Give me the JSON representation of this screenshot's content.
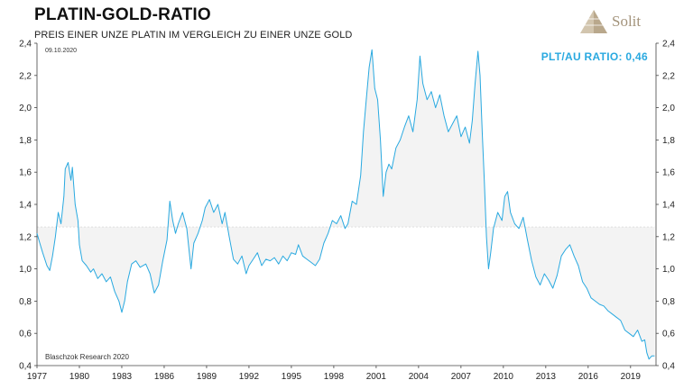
{
  "header": {
    "title": "PLATIN-GOLD-RATIO",
    "subtitle": "PREIS EINER UNZE PLATIN IM VERGLEICH ZU EINER UNZE GOLD"
  },
  "logo": {
    "text": "Solit",
    "color": "#a3937b"
  },
  "annotations": {
    "date": "09.10.2020",
    "current_ratio": "PLT/AU RATIO: 0,46",
    "source": "Blaschzok Research 2020"
  },
  "colors": {
    "line": "#29a9e0",
    "band_fill": "#f3f3f3",
    "band_stroke": "#cfcfcf"
  },
  "chart_data": {
    "type": "line",
    "title": "PLATIN-GOLD-RATIO",
    "subtitle": "PREIS EINER UNZE PLATIN IM VERGLEICH ZU EINER UNZE GOLD",
    "xlabel": "",
    "ylabel": "",
    "xlim": [
      1977,
      2020.8
    ],
    "ylim": [
      0.4,
      2.4
    ],
    "x_ticks": [
      1977,
      1980,
      1983,
      1986,
      1989,
      1992,
      1995,
      1998,
      2001,
      2004,
      2007,
      2010,
      2013,
      2016,
      2019
    ],
    "y_ticks": [
      0.4,
      0.6,
      0.8,
      1.0,
      1.2,
      1.4,
      1.6,
      1.8,
      2.0,
      2.2,
      2.4
    ],
    "y_tick_labels": [
      "0,4",
      "0,6",
      "0,8",
      "1,0",
      "1,2",
      "1,4",
      "1,6",
      "1,8",
      "2,0",
      "2,2",
      "2,4"
    ],
    "axes_both_sides": true,
    "grid": false,
    "reference_level": 1.26,
    "series": [
      {
        "color": "#29a9e0",
        "points": [
          [
            1977.0,
            1.22
          ],
          [
            1977.2,
            1.16
          ],
          [
            1977.4,
            1.1
          ],
          [
            1977.7,
            1.02
          ],
          [
            1977.9,
            0.99
          ],
          [
            1978.1,
            1.08
          ],
          [
            1978.3,
            1.2
          ],
          [
            1978.5,
            1.35
          ],
          [
            1978.7,
            1.28
          ],
          [
            1978.9,
            1.45
          ],
          [
            1979.0,
            1.62
          ],
          [
            1979.2,
            1.66
          ],
          [
            1979.4,
            1.55
          ],
          [
            1979.5,
            1.63
          ],
          [
            1979.7,
            1.4
          ],
          [
            1979.9,
            1.3
          ],
          [
            1980.0,
            1.15
          ],
          [
            1980.2,
            1.05
          ],
          [
            1980.5,
            1.02
          ],
          [
            1980.8,
            0.98
          ],
          [
            1981.0,
            1.0
          ],
          [
            1981.3,
            0.94
          ],
          [
            1981.6,
            0.97
          ],
          [
            1981.9,
            0.92
          ],
          [
            1982.2,
            0.95
          ],
          [
            1982.5,
            0.86
          ],
          [
            1982.8,
            0.8
          ],
          [
            1983.0,
            0.73
          ],
          [
            1983.2,
            0.8
          ],
          [
            1983.4,
            0.92
          ],
          [
            1983.7,
            1.03
          ],
          [
            1984.0,
            1.05
          ],
          [
            1984.3,
            1.01
          ],
          [
            1984.7,
            1.03
          ],
          [
            1985.0,
            0.97
          ],
          [
            1985.3,
            0.85
          ],
          [
            1985.6,
            0.9
          ],
          [
            1985.9,
            1.05
          ],
          [
            1986.2,
            1.18
          ],
          [
            1986.4,
            1.42
          ],
          [
            1986.6,
            1.3
          ],
          [
            1986.8,
            1.22
          ],
          [
            1987.0,
            1.28
          ],
          [
            1987.3,
            1.35
          ],
          [
            1987.6,
            1.25
          ],
          [
            1987.9,
            1.0
          ],
          [
            1988.1,
            1.16
          ],
          [
            1988.4,
            1.22
          ],
          [
            1988.7,
            1.3
          ],
          [
            1988.9,
            1.38
          ],
          [
            1989.2,
            1.43
          ],
          [
            1989.5,
            1.35
          ],
          [
            1989.8,
            1.4
          ],
          [
            1990.1,
            1.28
          ],
          [
            1990.3,
            1.35
          ],
          [
            1990.6,
            1.2
          ],
          [
            1990.9,
            1.06
          ],
          [
            1991.2,
            1.03
          ],
          [
            1991.5,
            1.08
          ],
          [
            1991.8,
            0.97
          ],
          [
            1992.0,
            1.02
          ],
          [
            1992.3,
            1.06
          ],
          [
            1992.6,
            1.1
          ],
          [
            1992.9,
            1.02
          ],
          [
            1993.2,
            1.06
          ],
          [
            1993.5,
            1.05
          ],
          [
            1993.8,
            1.07
          ],
          [
            1994.1,
            1.03
          ],
          [
            1994.4,
            1.08
          ],
          [
            1994.7,
            1.05
          ],
          [
            1995.0,
            1.1
          ],
          [
            1995.3,
            1.09
          ],
          [
            1995.5,
            1.15
          ],
          [
            1995.8,
            1.08
          ],
          [
            1996.1,
            1.06
          ],
          [
            1996.4,
            1.04
          ],
          [
            1996.7,
            1.02
          ],
          [
            1997.0,
            1.06
          ],
          [
            1997.3,
            1.16
          ],
          [
            1997.6,
            1.22
          ],
          [
            1997.9,
            1.3
          ],
          [
            1998.2,
            1.28
          ],
          [
            1998.5,
            1.33
          ],
          [
            1998.8,
            1.25
          ],
          [
            1999.0,
            1.28
          ],
          [
            1999.3,
            1.42
          ],
          [
            1999.6,
            1.4
          ],
          [
            1999.9,
            1.58
          ],
          [
            2000.1,
            1.85
          ],
          [
            2000.3,
            2.05
          ],
          [
            2000.5,
            2.25
          ],
          [
            2000.7,
            2.36
          ],
          [
            2000.9,
            2.12
          ],
          [
            2001.1,
            2.05
          ],
          [
            2001.3,
            1.8
          ],
          [
            2001.5,
            1.45
          ],
          [
            2001.7,
            1.6
          ],
          [
            2001.9,
            1.65
          ],
          [
            2002.1,
            1.62
          ],
          [
            2002.4,
            1.75
          ],
          [
            2002.7,
            1.8
          ],
          [
            2003.0,
            1.88
          ],
          [
            2003.3,
            1.95
          ],
          [
            2003.6,
            1.85
          ],
          [
            2003.9,
            2.05
          ],
          [
            2004.1,
            2.32
          ],
          [
            2004.3,
            2.15
          ],
          [
            2004.6,
            2.05
          ],
          [
            2004.9,
            2.1
          ],
          [
            2005.2,
            2.0
          ],
          [
            2005.5,
            2.08
          ],
          [
            2005.8,
            1.95
          ],
          [
            2006.1,
            1.85
          ],
          [
            2006.4,
            1.9
          ],
          [
            2006.7,
            1.95
          ],
          [
            2007.0,
            1.82
          ],
          [
            2007.3,
            1.88
          ],
          [
            2007.6,
            1.78
          ],
          [
            2007.8,
            1.92
          ],
          [
            2008.0,
            2.15
          ],
          [
            2008.2,
            2.35
          ],
          [
            2008.35,
            2.2
          ],
          [
            2008.5,
            1.85
          ],
          [
            2008.65,
            1.55
          ],
          [
            2008.8,
            1.2
          ],
          [
            2008.95,
            1.0
          ],
          [
            2009.1,
            1.1
          ],
          [
            2009.3,
            1.25
          ],
          [
            2009.6,
            1.35
          ],
          [
            2009.9,
            1.3
          ],
          [
            2010.1,
            1.45
          ],
          [
            2010.3,
            1.48
          ],
          [
            2010.5,
            1.35
          ],
          [
            2010.8,
            1.28
          ],
          [
            2011.1,
            1.25
          ],
          [
            2011.4,
            1.32
          ],
          [
            2011.7,
            1.18
          ],
          [
            2012.0,
            1.05
          ],
          [
            2012.3,
            0.95
          ],
          [
            2012.6,
            0.9
          ],
          [
            2012.9,
            0.97
          ],
          [
            2013.2,
            0.93
          ],
          [
            2013.5,
            0.88
          ],
          [
            2013.8,
            0.96
          ],
          [
            2014.1,
            1.08
          ],
          [
            2014.4,
            1.12
          ],
          [
            2014.7,
            1.15
          ],
          [
            2015.0,
            1.08
          ],
          [
            2015.3,
            1.02
          ],
          [
            2015.6,
            0.92
          ],
          [
            2015.9,
            0.88
          ],
          [
            2016.2,
            0.82
          ],
          [
            2016.5,
            0.8
          ],
          [
            2016.8,
            0.78
          ],
          [
            2017.1,
            0.77
          ],
          [
            2017.4,
            0.74
          ],
          [
            2017.7,
            0.72
          ],
          [
            2018.0,
            0.7
          ],
          [
            2018.3,
            0.68
          ],
          [
            2018.6,
            0.62
          ],
          [
            2018.9,
            0.6
          ],
          [
            2019.2,
            0.58
          ],
          [
            2019.5,
            0.62
          ],
          [
            2019.8,
            0.55
          ],
          [
            2020.0,
            0.56
          ],
          [
            2020.15,
            0.48
          ],
          [
            2020.3,
            0.44
          ],
          [
            2020.5,
            0.46
          ],
          [
            2020.7,
            0.46
          ]
        ]
      }
    ]
  }
}
